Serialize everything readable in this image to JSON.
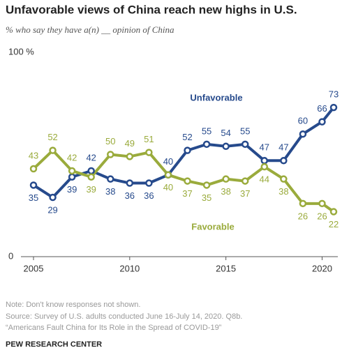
{
  "chart_data": {
    "type": "line",
    "title": "Unfavorable views of China reach new highs in U.S.",
    "subtitle": "% who say they have a(n) __ opinion of China",
    "x": [
      2005,
      2006,
      2007,
      2008,
      2009,
      2010,
      2011,
      2012,
      2013,
      2014,
      2015,
      2016,
      2017,
      2018,
      2019,
      2020,
      2020.6
    ],
    "series": [
      {
        "name": "Unfavorable",
        "color": "#264a8c",
        "values": [
          35,
          29,
          39,
          42,
          38,
          36,
          36,
          40,
          52,
          55,
          54,
          55,
          47,
          47,
          60,
          66,
          73
        ]
      },
      {
        "name": "Favorable",
        "color": "#9aab3c",
        "values": [
          43,
          52,
          42,
          39,
          50,
          49,
          51,
          40,
          37,
          35,
          38,
          37,
          44,
          38,
          26,
          26,
          22
        ]
      }
    ],
    "xlim": [
      2005,
      2020.6
    ],
    "xticks": [
      2005,
      2010,
      2015,
      2020
    ],
    "ylim": [
      0,
      100
    ],
    "yticks": [
      0,
      {
        "value": 100,
        "label": "100 %"
      }
    ],
    "note": "Note: Don't know responses not shown.",
    "source": [
      "Source: Survey of U.S. adults conducted June 16-July 14, 2020. Q8b.",
      "“Americans Fault China for Its Role in the Spread of COVID-19”"
    ],
    "brand": "PEW RESEARCH CENTER"
  }
}
